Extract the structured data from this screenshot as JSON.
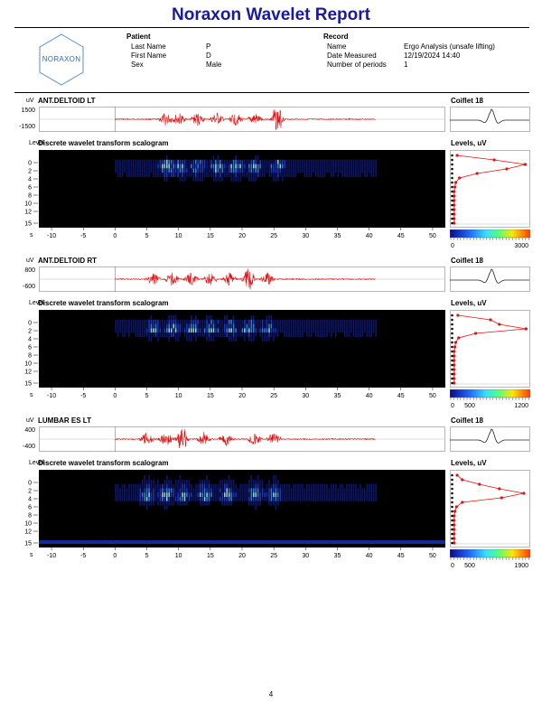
{
  "report": {
    "title": "Noraxon Wavelet Report",
    "logo_text": "NORAXON",
    "page_number": "4"
  },
  "patient": {
    "heading": "Patient",
    "fields": [
      {
        "label": "Last Name",
        "value": "P"
      },
      {
        "label": "First Name",
        "value": "D"
      },
      {
        "label": "Sex",
        "value": "Male"
      }
    ]
  },
  "record": {
    "heading": "Record",
    "fields": [
      {
        "label": "Name",
        "value": "Ergo Analysis (unsafe lifting)"
      },
      {
        "label": "Date Measured",
        "value": "12/19/2024 14:40"
      },
      {
        "label": "Number of periods",
        "value": "1"
      }
    ]
  },
  "common": {
    "unit": "uV",
    "level_label": "Level",
    "scalogram_title": "Discrete wavelet transform scalogram",
    "levels_title": "Levels, uV",
    "x_unit": "s",
    "x_ticks": [
      "-10",
      "-5",
      "0",
      "5",
      "10",
      "15",
      "20",
      "25",
      "30",
      "35",
      "40",
      "45",
      "50"
    ],
    "y_ticks": [
      "0",
      "2",
      "4",
      "6",
      "8",
      "10",
      "12",
      "15"
    ],
    "colors": {
      "signal": "#e81010",
      "title_blue": "#1a1a9c",
      "scalogram_bg": "#000000"
    }
  },
  "channels": [
    {
      "name": "ANT.DELTOID LT",
      "y_max": "1500",
      "y_min": "-1500",
      "wavelet": "Coiflet 18",
      "colorbar_ticks": [
        "0",
        "3000"
      ],
      "chart_data": {
        "type": "line",
        "x_range": [
          -12,
          52
        ],
        "signal_range": [
          0,
          41
        ],
        "ylim": [
          -1500,
          1500
        ],
        "level_profile": [
          0.05,
          0.55,
          0.97,
          0.72,
          0.32,
          0.08,
          0.03,
          0.02,
          0.01,
          0.01,
          0.01,
          0.01,
          0.01,
          0.01,
          0.01,
          0.01
        ]
      }
    },
    {
      "name": "ANT.DELTOID RT",
      "y_max": "800",
      "y_min": "-600",
      "wavelet": "Coiflet 18",
      "colorbar_ticks": [
        "0",
        "500",
        "1200"
      ],
      "chart_data": {
        "type": "line",
        "x_range": [
          -12,
          52
        ],
        "signal_range": [
          0,
          41
        ],
        "ylim": [
          -600,
          800
        ],
        "level_profile": [
          0.06,
          0.5,
          0.62,
          0.98,
          0.3,
          0.07,
          0.03,
          0.02,
          0.01,
          0.01,
          0.01,
          0.01,
          0.01,
          0.01,
          0.01,
          0.01
        ]
      }
    },
    {
      "name": "LUMBAR ES LT",
      "y_max": "400",
      "y_min": "-400",
      "wavelet": "Coiflet 18",
      "colorbar_ticks": [
        "0",
        "500",
        "1900"
      ],
      "chart_data": {
        "type": "line",
        "x_range": [
          -12,
          52
        ],
        "signal_range": [
          0,
          41
        ],
        "ylim": [
          -400,
          400
        ],
        "level_profile": [
          0.05,
          0.12,
          0.35,
          0.62,
          0.95,
          0.65,
          0.12,
          0.04,
          0.02,
          0.01,
          0.01,
          0.01,
          0.01,
          0.01,
          0.01,
          0.01
        ]
      }
    }
  ]
}
